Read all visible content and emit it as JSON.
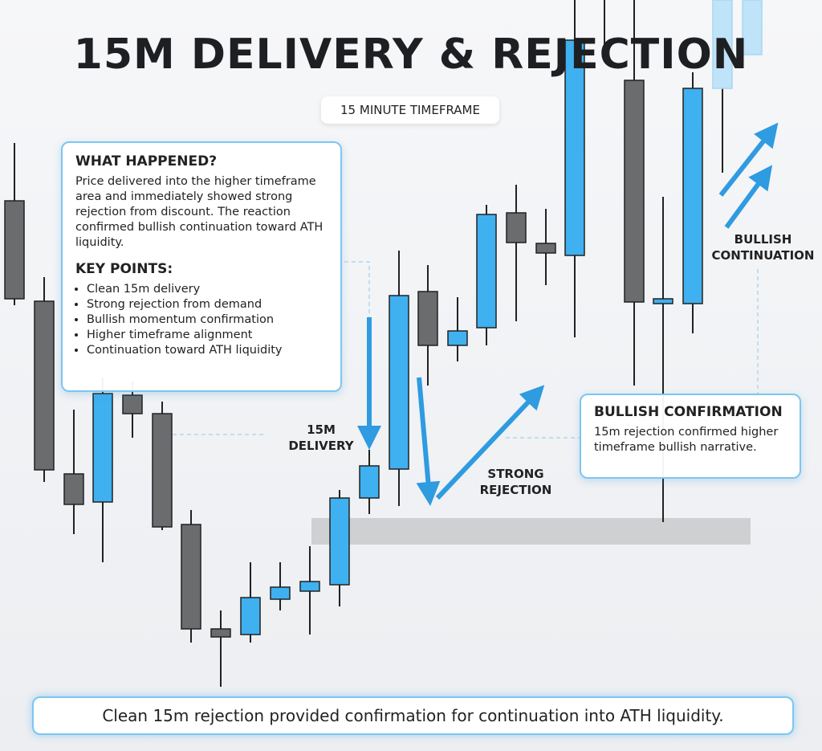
{
  "title": "15M DELIVERY & REJECTION",
  "timeframe": "15 MINUTE TIMEFRAME",
  "info_box": {
    "heading": "WHAT HAPPENED?",
    "body": "Price delivered into the higher timeframe area and immediately showed strong rejection from discount. The reaction confirmed bullish continuation toward ATH liquidity.",
    "key_points_heading": "KEY POINTS:",
    "key_points": [
      "Clean 15m delivery",
      "Strong rejection from demand",
      "Bullish momentum confirmation",
      "Higher timeframe alignment",
      "Continuation toward ATH liquidity"
    ]
  },
  "annotations": {
    "delivery": "15M DELIVERY",
    "rejection": "STRONG REJECTION",
    "continuation": "BULLISH CONTINUATION"
  },
  "confirmation_box": {
    "heading": "BULLISH CONFIRMATION",
    "body": "15m rejection confirmed higher timeframe bullish narrative."
  },
  "footer": "Clean 15m rejection provided confirmation for continuation into ATH liquidity."
}
